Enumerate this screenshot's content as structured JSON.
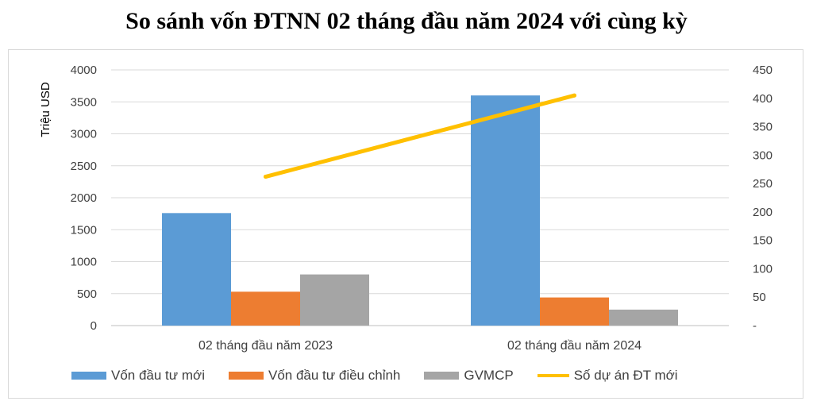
{
  "chart_data": {
    "type": "bar",
    "title": "So sánh vốn ĐTNN 02 tháng đầu năm 2024 với cùng kỳ",
    "ylabel": "Triệu USD",
    "ylim": [
      0,
      4000
    ],
    "y_ticks": [
      "0",
      "500",
      "1000",
      "1500",
      "2000",
      "2500",
      "3000",
      "3500",
      "4000"
    ],
    "y2lim": [
      0,
      450
    ],
    "y2_ticks": [
      "-",
      "50",
      "100",
      "150",
      "200",
      "250",
      "300",
      "350",
      "400",
      "450"
    ],
    "categories": [
      "02 tháng đầu năm 2023",
      "02 tháng đầu năm 2024"
    ],
    "series": [
      {
        "name": "Vốn đầu tư mới",
        "type": "bar",
        "axis": "left",
        "color": "#5b9bd5",
        "values": [
          1760,
          3600
        ]
      },
      {
        "name": "Vốn đầu tư điều chỉnh",
        "type": "bar",
        "axis": "left",
        "color": "#ed7d31",
        "values": [
          530,
          440
        ]
      },
      {
        "name": "GVMCP",
        "type": "bar",
        "axis": "left",
        "color": "#a5a5a5",
        "values": [
          800,
          250
        ]
      },
      {
        "name": "Số dự án ĐT mới",
        "type": "line",
        "axis": "right",
        "color": "#ffc000",
        "values": [
          262,
          405
        ]
      }
    ],
    "grid": true,
    "legend_position": "bottom"
  }
}
